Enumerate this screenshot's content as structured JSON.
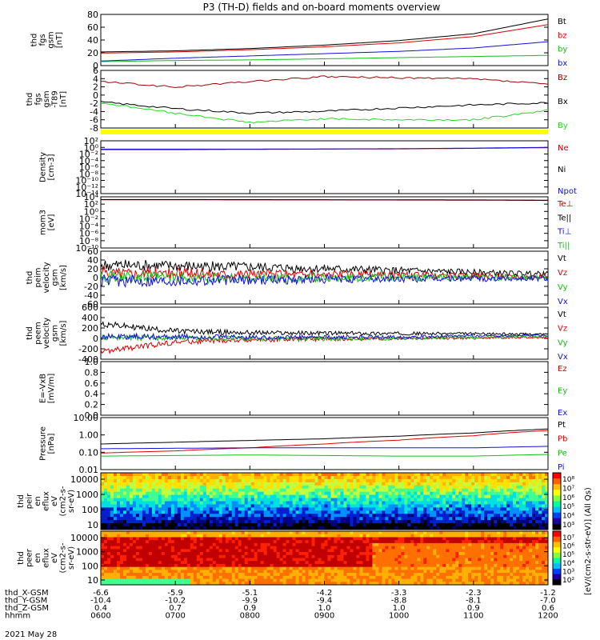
{
  "title": "P3 (TH-D) fields and on-board moments overview",
  "chart_data": [
    {
      "id": "fgs",
      "type": "line",
      "ylabel": [
        "thd",
        "fgs",
        "gsm",
        "[nT]"
      ],
      "yticks": [
        "80",
        "60",
        "40",
        "20",
        "0"
      ],
      "ylim": [
        -10,
        80
      ],
      "x": [
        "0600",
        "0700",
        "0800",
        "0900",
        "1000",
        "1100",
        "1200"
      ],
      "series": [
        {
          "name": "Bt",
          "color": "#000000",
          "values": [
            14,
            16,
            20,
            26,
            34,
            46,
            72
          ]
        },
        {
          "name": "bz",
          "color": "#e00000",
          "values": [
            12,
            14,
            18,
            23,
            30,
            41,
            62
          ]
        },
        {
          "name": "by",
          "color": "#1010e0",
          "values": [
            -2,
            3,
            7,
            11,
            15,
            21,
            32
          ]
        },
        {
          "name": "bx",
          "color": "#10c010",
          "values": [
            -3,
            -1,
            0,
            2,
            4,
            6,
            8
          ]
        }
      ],
      "legend_colors": [
        "#000000",
        "#e00000",
        "#10c010",
        "#1010e0"
      ],
      "legend": [
        "Bt",
        "bz",
        "by",
        "bx"
      ]
    },
    {
      "id": "fgs_t89",
      "type": "line",
      "ylabel": [
        "thd",
        "fgs",
        "gsm",
        "-T89",
        "[nT]"
      ],
      "yticks": [
        "6",
        "4",
        "2",
        "0",
        "-2",
        "-4",
        "-6",
        "-8"
      ],
      "ylim": [
        -9,
        6.5
      ],
      "x": [
        "0600",
        "0700",
        "0800",
        "0900",
        "1000",
        "1100",
        "1200"
      ],
      "series": [
        {
          "name": "Bz",
          "color": "#a00000",
          "values": [
            3.5,
            2.0,
            3.5,
            4.8,
            4.5,
            4.2,
            2.8
          ]
        },
        {
          "name": "Bx",
          "color": "#000000",
          "values": [
            -2.0,
            -3.8,
            -5.0,
            -4.5,
            -3.6,
            -2.8,
            -2.2
          ]
        },
        {
          "name": "By",
          "color": "#20e020",
          "values": [
            -2.2,
            -5.0,
            -7.5,
            -6.5,
            -6.8,
            -6.8,
            -4.2
          ]
        }
      ],
      "legend_colors": [
        "#a00000",
        "#000000",
        "#20e020"
      ],
      "legend": [
        "Bz",
        "Bx",
        "By"
      ]
    },
    {
      "id": "density",
      "type": "line",
      "ylabel": [
        "Density",
        "[cm-3]"
      ],
      "yticks": [
        "10²",
        "10⁰",
        "10⁻²",
        "10⁻⁴",
        "10⁻⁶",
        "10⁻⁸",
        "10⁻¹⁰",
        "10⁻¹²",
        "10⁻¹⁴"
      ],
      "log": true,
      "ylim": [
        -14,
        2
      ],
      "x": [
        "0600",
        "0700",
        "0800",
        "0900",
        "1000",
        "1100",
        "1200"
      ],
      "series": [
        {
          "name": "Ne",
          "color": "#c00000",
          "values": [
            0.2,
            0.2,
            0.25,
            0.3,
            0.35,
            0.5,
            0.8
          ]
        },
        {
          "name": "Npot",
          "color": "#1010e0",
          "values": [
            0.3,
            0.3,
            0.3,
            0.35,
            0.4,
            0.6,
            1.0
          ]
        }
      ],
      "legend_colors": [
        "#c00000",
        "#000000",
        "#1010e0"
      ],
      "legend": [
        "Ne",
        "Ni",
        "Npot"
      ]
    },
    {
      "id": "temperature",
      "type": "line",
      "ylabel": [
        "mom3",
        "[eV]"
      ],
      "yticks": [
        "10⁴",
        "10²",
        "10⁰",
        "10⁻²",
        "10⁻⁴",
        "10⁻⁶",
        "10⁻⁸",
        "10⁻¹⁰"
      ],
      "log": true,
      "ylim": [
        -10,
        4
      ],
      "x": [
        "0600",
        "0700",
        "0800",
        "0900",
        "1000",
        "1100",
        "1200"
      ],
      "series": [
        {
          "name": "Te⊥",
          "color": "#c00000",
          "values": [
            1500,
            1500,
            1400,
            1400,
            1300,
            1200,
            1000
          ]
        },
        {
          "name": "Te||",
          "color": "#000000",
          "values": [
            1800,
            1800,
            1700,
            1600,
            1500,
            1400,
            1200
          ]
        }
      ],
      "legend_colors": [
        "#c00000",
        "#000000",
        "#1010e0",
        "#20c020"
      ],
      "legend": [
        "Te⊥",
        "Te||",
        "Ti⊥",
        "Ti||"
      ]
    },
    {
      "id": "peim_velocity",
      "type": "line",
      "ylabel": [
        "thd",
        "peim",
        "velocity",
        "gsm",
        "[km/s]"
      ],
      "yticks": [
        "60",
        "40",
        "20",
        "0",
        "-20",
        "-40",
        "-60"
      ],
      "ylim": [
        -60,
        60
      ],
      "x": [
        "0600",
        "0700",
        "0800",
        "0900",
        "1000",
        "1100",
        "1200"
      ],
      "series": [
        {
          "name": "Vt",
          "color": "#000000",
          "values": [
            28,
            26,
            24,
            20,
            16,
            12,
            8
          ]
        },
        {
          "name": "Vz",
          "color": "#e00000",
          "values": [
            12,
            10,
            9,
            7,
            5,
            4,
            2
          ]
        },
        {
          "name": "Vy",
          "color": "#10c010",
          "values": [
            2,
            0,
            -2,
            -1,
            0,
            0,
            -1
          ]
        },
        {
          "name": "Vx",
          "color": "#1010e0",
          "values": [
            -8,
            -6,
            -5,
            -4,
            -3,
            -2,
            -2
          ]
        }
      ],
      "legend_colors": [
        "#000000",
        "#e00000",
        "#10c010",
        "#1010e0"
      ],
      "legend": [
        "Vt",
        "Vz",
        "Vy",
        "Vx"
      ]
    },
    {
      "id": "peem_velocity",
      "type": "line",
      "ylabel": [
        "thd",
        "peem",
        "velocity",
        "gsm",
        "[km/s]"
      ],
      "yticks": [
        "600",
        "400",
        "200",
        "0",
        "-200",
        "-400"
      ],
      "ylim": [
        -400,
        600
      ],
      "x": [
        "0600",
        "0700",
        "0800",
        "0900",
        "1000",
        "1100",
        "1200"
      ],
      "series": [
        {
          "name": "Vt",
          "color": "#000000",
          "values": [
            280,
            140,
            110,
            100,
            95,
            90,
            80
          ]
        },
        {
          "name": "Vz",
          "color": "#e00000",
          "values": [
            -260,
            -70,
            -30,
            -10,
            0,
            10,
            20
          ]
        },
        {
          "name": "Vy",
          "color": "#10c010",
          "values": [
            20,
            10,
            0,
            -10,
            0,
            20,
            40
          ]
        },
        {
          "name": "Vx",
          "color": "#1010e0",
          "values": [
            40,
            30,
            20,
            20,
            30,
            50,
            60
          ]
        }
      ],
      "legend_colors": [
        "#000000",
        "#e00000",
        "#10c010",
        "#1010e0"
      ],
      "legend": [
        "Vt",
        "Vz",
        "Vy",
        "Vx"
      ]
    },
    {
      "id": "efield",
      "type": "line",
      "ylabel": [
        "E=-VxB",
        "[mV/m]"
      ],
      "yticks": [
        "1.0",
        "0.8",
        "0.6",
        "0.4",
        "0.2",
        "0.0"
      ],
      "ylim": [
        0,
        1
      ],
      "x": [
        "0600",
        "0700",
        "0800",
        "0900",
        "1000",
        "1100",
        "1200"
      ],
      "series": [],
      "legend_colors": [
        "#e00000",
        "#10c010",
        "#1010e0"
      ],
      "legend": [
        "Ez",
        "Ey",
        "Ex"
      ]
    },
    {
      "id": "pressure",
      "type": "line",
      "ylabel": [
        "Pressure",
        "[nPa]"
      ],
      "yticks": [
        "10.00",
        "1.00",
        "0.10",
        "0.01"
      ],
      "log": true,
      "ylim": [
        -2,
        1
      ],
      "x": [
        "0600",
        "0700",
        "0800",
        "0900",
        "1000",
        "1100",
        "1200"
      ],
      "series": [
        {
          "name": "Pt",
          "color": "#000000",
          "values": [
            0.3,
            0.38,
            0.48,
            0.6,
            0.85,
            1.3,
            2.2
          ]
        },
        {
          "name": "Pb",
          "color": "#e00000",
          "values": [
            0.09,
            0.12,
            0.18,
            0.3,
            0.5,
            0.9,
            1.8
          ]
        },
        {
          "name": "Pe",
          "color": "#1010e0",
          "values": [
            0.16,
            0.17,
            0.18,
            0.18,
            0.18,
            0.18,
            0.22
          ]
        },
        {
          "name": "Pi",
          "color": "#10c010",
          "values": [
            0.06,
            0.065,
            0.07,
            0.065,
            0.06,
            0.06,
            0.075
          ]
        }
      ],
      "legend_colors": [
        "#000000",
        "#e00000",
        "#10c010",
        "#1010e0"
      ],
      "legend": [
        "Pt",
        "Pb",
        "Pe",
        "Pi"
      ]
    },
    {
      "id": "peir_spec",
      "type": "heatmap",
      "ylabel": [
        "thd",
        "peir",
        "en",
        "eflux",
        "eV",
        "(cm2-s-",
        "sr-eV)"
      ],
      "yticks": [
        "10000",
        "1000",
        "100",
        "10"
      ],
      "colorbar_ticks": [
        "10⁸",
        "10⁷",
        "10⁶",
        "10⁵",
        "10⁴",
        "10³"
      ]
    },
    {
      "id": "peer_spec",
      "type": "heatmap",
      "ylabel": [
        "thd",
        "peer",
        "en",
        "eflux",
        "eV",
        "(cm2-s-",
        "sr-eV)"
      ],
      "yticks": [
        "10000",
        "1000",
        "100",
        "10"
      ],
      "colorbar_ticks": [
        "10⁷",
        "10⁶",
        "10⁵",
        "10⁴",
        "10³",
        "10²"
      ]
    }
  ],
  "colorbar_label": "[eV/(cm2-s-str-eV)]",
  "colorbar_label2": "[eV/(cm2-s-str-eV)] (All Qs)",
  "xaxis": {
    "rows": [
      {
        "label": "thd_X-GSM",
        "values": [
          "-6.6",
          "-5.9",
          "-5.1",
          "-4.2",
          "-3.3",
          "-2.3",
          "-1.2"
        ]
      },
      {
        "label": "thd_Y-GSM",
        "values": [
          "-10.4",
          "-10.2",
          "-9.9",
          "-9.4",
          "-8.8",
          "-8.1",
          "-7.0"
        ]
      },
      {
        "label": "thd_Z-GSM",
        "values": [
          "0.4",
          "0.7",
          "0.9",
          "1.0",
          "1.0",
          "0.9",
          "0.6"
        ]
      },
      {
        "label": "hhmm",
        "values": [
          "0600",
          "0700",
          "0800",
          "0900",
          "1000",
          "1100",
          "1200"
        ]
      }
    ],
    "date": "2021 May 28"
  }
}
